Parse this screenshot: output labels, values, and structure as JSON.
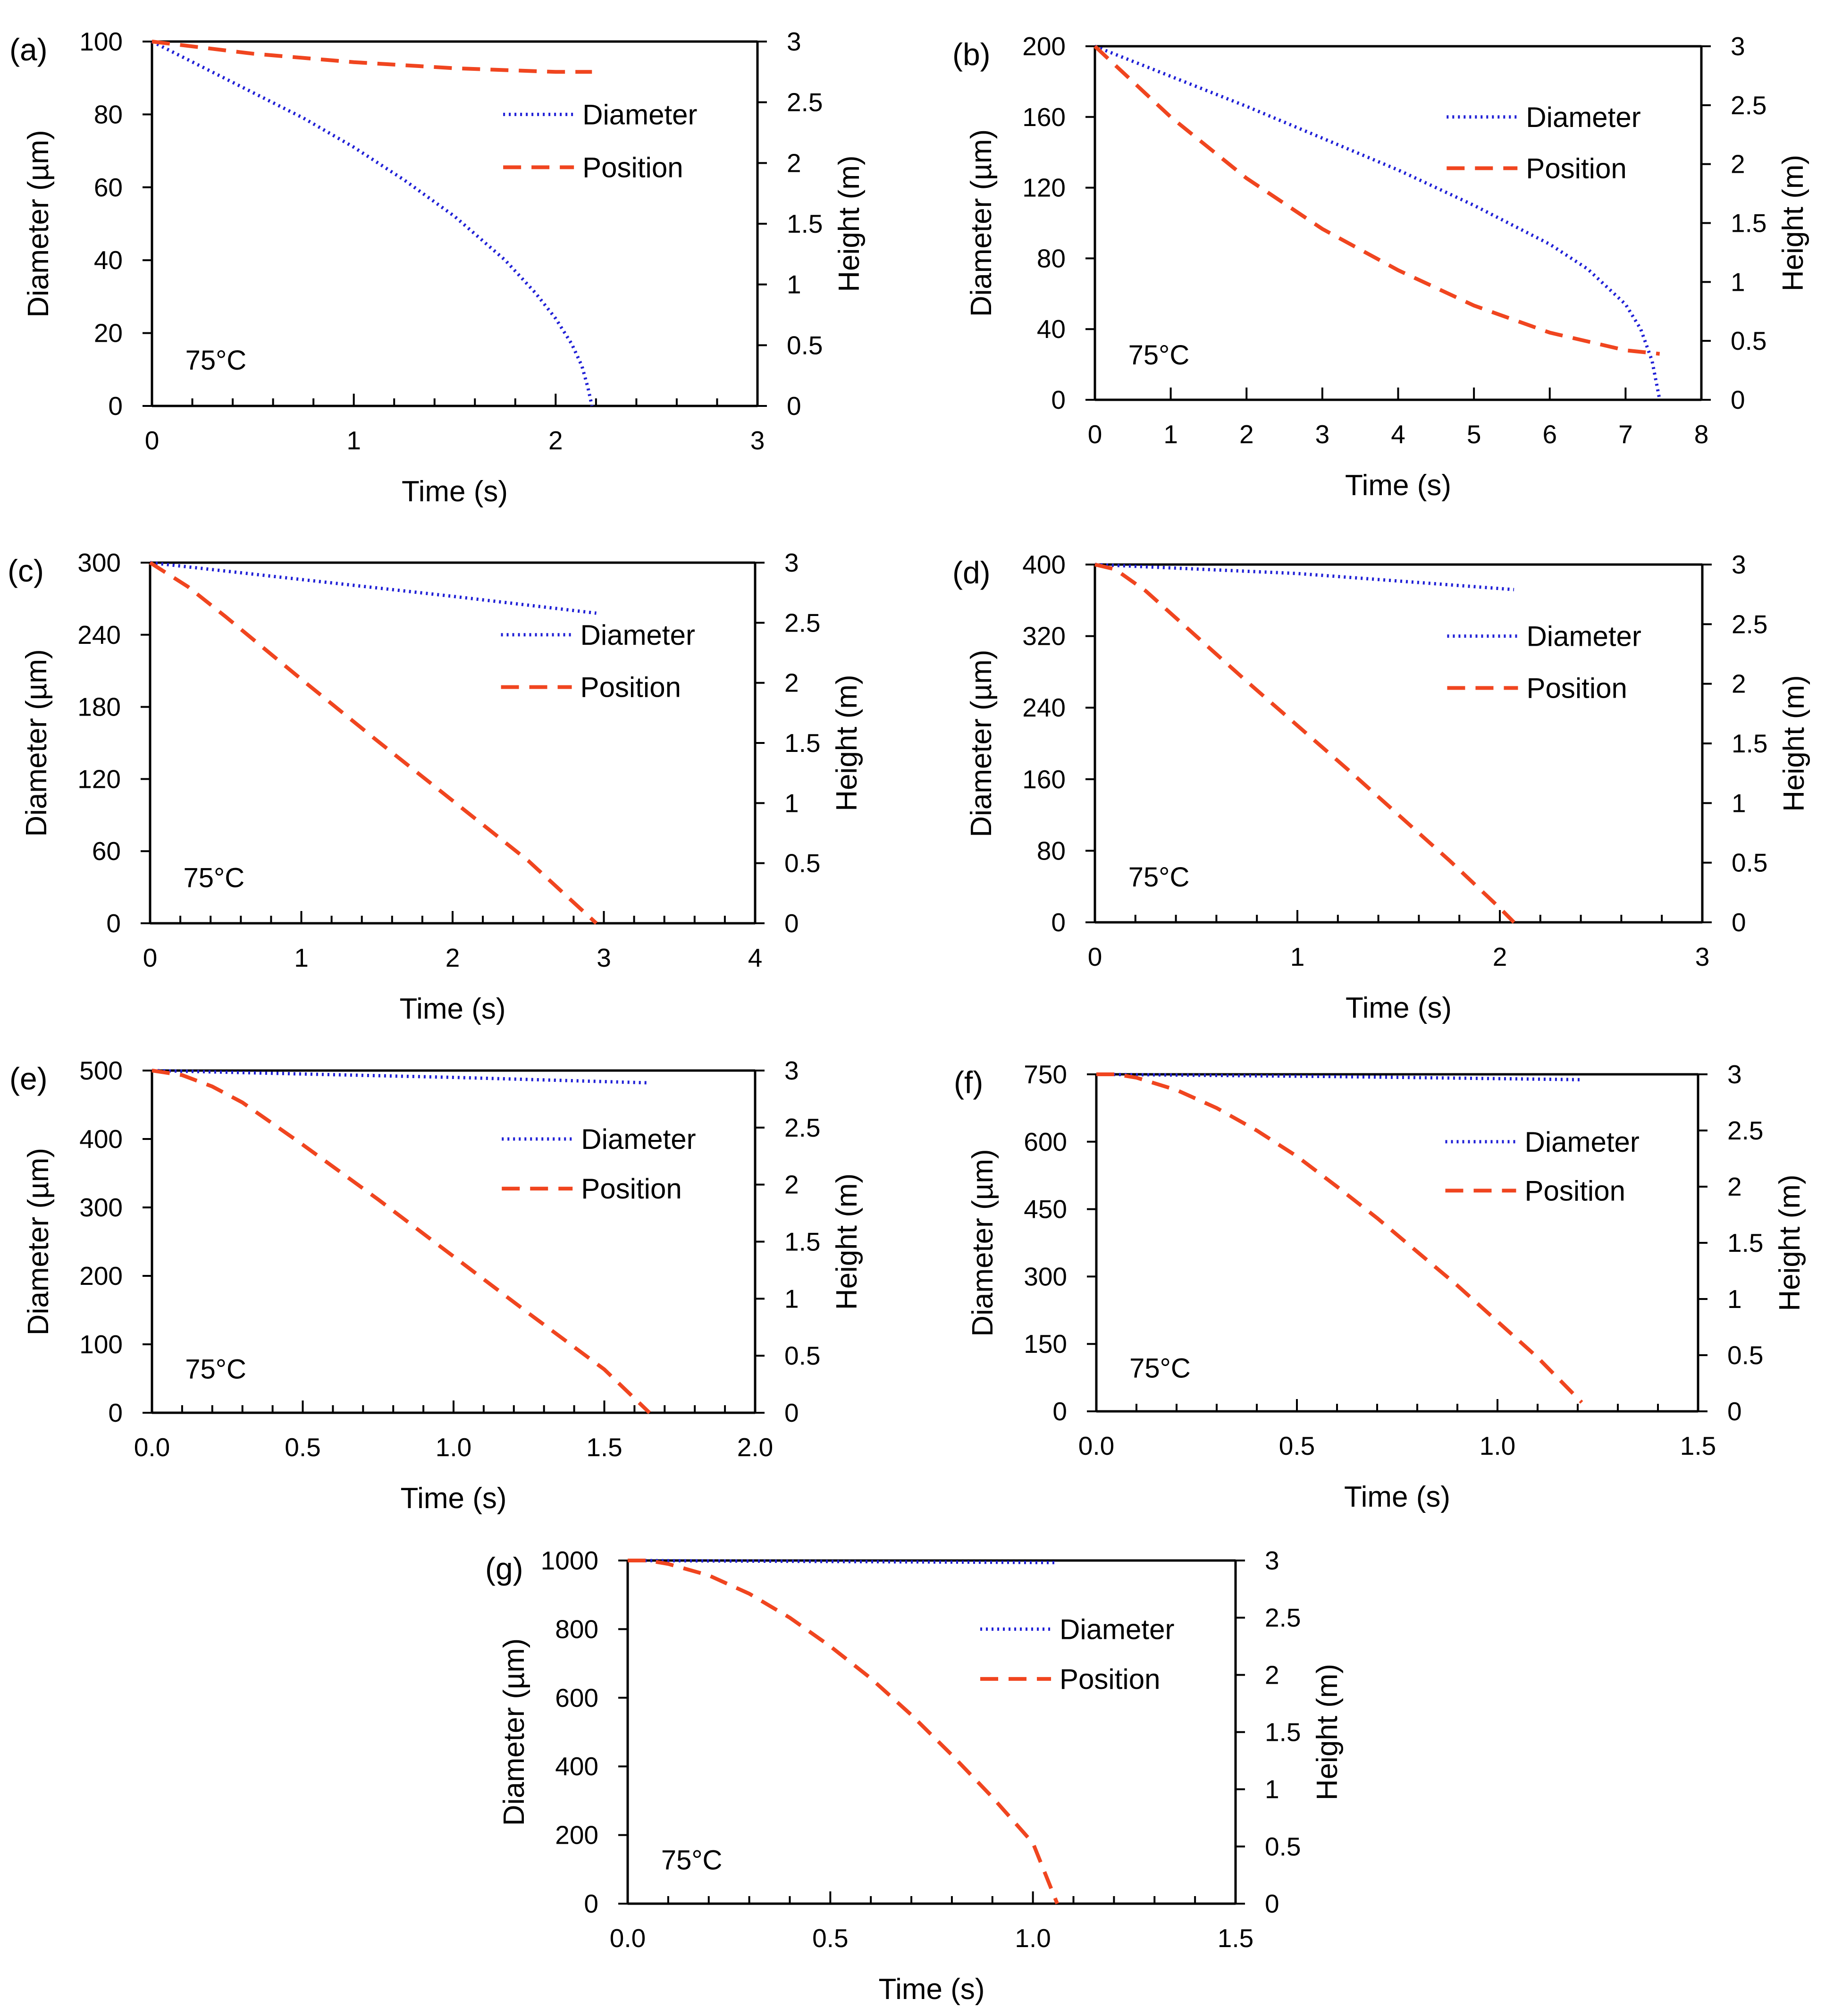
{
  "chart_data": [
    {
      "type": "line",
      "panel_label": "(a)",
      "xlabel": "Time (s)",
      "ylabel": "Diameter (µm)",
      "y2label": "Height (m)",
      "annotation": "75°C",
      "xlim": [
        0,
        3
      ],
      "ylim": [
        0,
        100
      ],
      "y2lim": [
        0,
        3
      ],
      "x_ticks": [
        "0",
        "1",
        "2",
        "3"
      ],
      "y_ticks": [
        "0",
        "20",
        "40",
        "60",
        "80",
        "100"
      ],
      "y2_ticks": [
        "0",
        "0.5",
        "1",
        "1.5",
        "2",
        "2.5",
        "3"
      ],
      "legend": {
        "position": "upper-right",
        "entries": [
          "Diameter",
          "Position"
        ]
      },
      "series": [
        {
          "name": "Diameter",
          "axis": "left",
          "style": "dotted",
          "color": "#1f1fd6",
          "x": [
            0,
            0.25,
            0.5,
            0.75,
            1.0,
            1.25,
            1.5,
            1.75,
            1.9,
            2.0,
            2.08,
            2.13,
            2.16,
            2.18
          ],
          "y": [
            100,
            93,
            86,
            79,
            71,
            62,
            52,
            40,
            31,
            24,
            17,
            11,
            5,
            0
          ]
        },
        {
          "name": "Position",
          "axis": "right",
          "style": "dashed",
          "color": "#f0451f",
          "x": [
            0,
            0.5,
            1.0,
            1.5,
            2.0,
            2.18
          ],
          "y": [
            3.0,
            2.9,
            2.83,
            2.78,
            2.75,
            2.75
          ]
        }
      ]
    },
    {
      "type": "line",
      "panel_label": "(b)",
      "xlabel": "Time (s)",
      "ylabel": "Diameter (µm)",
      "y2label": "Height (m)",
      "annotation": "75°C",
      "xlim": [
        0,
        8
      ],
      "ylim": [
        0,
        200
      ],
      "y2lim": [
        0,
        3
      ],
      "x_ticks": [
        "0",
        "1",
        "2",
        "3",
        "4",
        "5",
        "6",
        "7",
        "8"
      ],
      "y_ticks": [
        "0",
        "40",
        "80",
        "120",
        "160",
        "200"
      ],
      "y2_ticks": [
        "0",
        "0.5",
        "1",
        "1.5",
        "2",
        "2.5",
        "3"
      ],
      "legend": {
        "position": "upper-right",
        "entries": [
          "Diameter",
          "Position"
        ]
      },
      "series": [
        {
          "name": "Diameter",
          "axis": "left",
          "style": "dotted",
          "color": "#1f1fd6",
          "x": [
            0,
            1,
            2,
            3,
            4,
            5,
            6,
            6.5,
            7.0,
            7.2,
            7.35,
            7.45
          ],
          "y": [
            200,
            183,
            166,
            148,
            130,
            110,
            88,
            74,
            54,
            40,
            22,
            0
          ]
        },
        {
          "name": "Position",
          "axis": "right",
          "style": "dashed",
          "color": "#f0451f",
          "x": [
            0,
            1,
            2,
            3,
            4,
            5,
            6,
            7,
            7.45
          ],
          "y": [
            3.0,
            2.4,
            1.88,
            1.45,
            1.1,
            0.8,
            0.57,
            0.42,
            0.39
          ]
        }
      ]
    },
    {
      "type": "line",
      "panel_label": "(c)",
      "xlabel": "Time (s)",
      "ylabel": "Diameter (µm)",
      "y2label": "Height (m)",
      "annotation": "75°C",
      "xlim": [
        0,
        4
      ],
      "ylim": [
        0,
        300
      ],
      "y2lim": [
        0,
        3
      ],
      "x_ticks": [
        "0",
        "1",
        "2",
        "3",
        "4"
      ],
      "y_ticks": [
        "0",
        "60",
        "120",
        "180",
        "240",
        "300"
      ],
      "y2_ticks": [
        "0",
        "0.5",
        "1",
        "1.5",
        "2",
        "2.5",
        "3"
      ],
      "legend": {
        "position": "upper-right",
        "entries": [
          "Diameter",
          "Position"
        ]
      },
      "series": [
        {
          "name": "Diameter",
          "axis": "left",
          "style": "dotted",
          "color": "#1f1fd6",
          "x": [
            0,
            1,
            2,
            2.95
          ],
          "y": [
            300,
            286,
            272,
            258
          ]
        },
        {
          "name": "Position",
          "axis": "right",
          "style": "dashed",
          "color": "#f0451f",
          "x": [
            0,
            0.25,
            0.5,
            1.0,
            1.5,
            2.0,
            2.5,
            2.95
          ],
          "y": [
            3.0,
            2.8,
            2.55,
            2.03,
            1.52,
            1.02,
            0.52,
            0.0
          ]
        }
      ]
    },
    {
      "type": "line",
      "panel_label": "(d)",
      "xlabel": "Time (s)",
      "ylabel": "Diameter (µm)",
      "y2label": "Height (m)",
      "annotation": "75°C",
      "xlim": [
        0,
        3
      ],
      "ylim": [
        0,
        400
      ],
      "y2lim": [
        0,
        3
      ],
      "x_ticks": [
        "0",
        "1",
        "2",
        "3"
      ],
      "y_ticks": [
        "0",
        "80",
        "160",
        "240",
        "320",
        "400"
      ],
      "y2_ticks": [
        "0",
        "0.5",
        "1",
        "1.5",
        "2",
        "2.5",
        "3"
      ],
      "legend": {
        "position": "upper-right",
        "entries": [
          "Diameter",
          "Position"
        ]
      },
      "series": [
        {
          "name": "Diameter",
          "axis": "left",
          "style": "dotted",
          "color": "#1f1fd6",
          "x": [
            0,
            1,
            2.07
          ],
          "y": [
            400,
            390,
            372
          ]
        },
        {
          "name": "Position",
          "axis": "right",
          "style": "dashed",
          "color": "#f0451f",
          "x": [
            0,
            0.1,
            0.25,
            0.5,
            0.75,
            1.0,
            1.25,
            1.5,
            1.75,
            2.0,
            2.07
          ],
          "y": [
            3.0,
            2.96,
            2.78,
            2.4,
            2.02,
            1.65,
            1.28,
            0.9,
            0.52,
            0.12,
            0.0
          ]
        }
      ]
    },
    {
      "type": "line",
      "panel_label": "(e)",
      "xlabel": "Time (s)",
      "ylabel": "Diameter (µm)",
      "y2label": "Height (m)",
      "annotation": "75°C",
      "xlim": [
        0,
        2.0
      ],
      "ylim": [
        0,
        500
      ],
      "y2lim": [
        0,
        3
      ],
      "x_ticks": [
        "0.0",
        "0.5",
        "1.0",
        "1.5",
        "2.0"
      ],
      "y_ticks": [
        "0",
        "100",
        "200",
        "300",
        "400",
        "500"
      ],
      "y2_ticks": [
        "0",
        "0.5",
        "1",
        "1.5",
        "2",
        "2.5",
        "3"
      ],
      "legend": {
        "position": "upper-right",
        "entries": [
          "Diameter",
          "Position"
        ]
      },
      "series": [
        {
          "name": "Diameter",
          "axis": "left",
          "style": "dotted",
          "color": "#1f1fd6",
          "x": [
            0,
            0.5,
            1.0,
            1.65
          ],
          "y": [
            500,
            495,
            490,
            482
          ]
        },
        {
          "name": "Position",
          "axis": "right",
          "style": "dashed",
          "color": "#f0451f",
          "x": [
            0,
            0.1,
            0.2,
            0.3,
            0.5,
            0.75,
            1.0,
            1.25,
            1.5,
            1.65
          ],
          "y": [
            3.0,
            2.96,
            2.86,
            2.72,
            2.35,
            1.87,
            1.37,
            0.87,
            0.38,
            0.0
          ]
        }
      ]
    },
    {
      "type": "line",
      "panel_label": "(f)",
      "xlabel": "Time (s)",
      "ylabel": "Diameter (µm)",
      "y2label": "Height (m)",
      "annotation": "75°C",
      "xlim": [
        0,
        1.5
      ],
      "ylim": [
        0,
        750
      ],
      "y2lim": [
        0,
        3
      ],
      "x_ticks": [
        "0.0",
        "0.5",
        "1.0",
        "1.5"
      ],
      "y_ticks": [
        "0",
        "150",
        "300",
        "450",
        "600",
        "750"
      ],
      "y2_ticks": [
        "0",
        "0.5",
        "1",
        "1.5",
        "2",
        "2.5",
        "3"
      ],
      "legend": {
        "position": "upper-right",
        "entries": [
          "Diameter",
          "Position"
        ]
      },
      "series": [
        {
          "name": "Diameter",
          "axis": "left",
          "style": "dotted",
          "color": "#1f1fd6",
          "x": [
            0,
            0.6,
            1.21
          ],
          "y": [
            750,
            745,
            738
          ]
        },
        {
          "name": "Position",
          "axis": "right",
          "style": "dashed",
          "color": "#f0451f",
          "x": [
            0,
            0.05,
            0.1,
            0.2,
            0.3,
            0.4,
            0.5,
            0.6,
            0.7,
            0.8,
            0.9,
            1.0,
            1.1,
            1.21
          ],
          "y": [
            3.0,
            3.0,
            2.97,
            2.86,
            2.7,
            2.5,
            2.27,
            2.0,
            1.72,
            1.42,
            1.12,
            0.8,
            0.48,
            0.08
          ]
        }
      ]
    },
    {
      "type": "line",
      "panel_label": "(g)",
      "xlabel": "Time (s)",
      "ylabel": "Diameter (µm)",
      "y2label": "Height (m)",
      "annotation": "75°C",
      "xlim": [
        0,
        1.5
      ],
      "ylim": [
        0,
        1000
      ],
      "y2lim": [
        0,
        3
      ],
      "x_ticks": [
        "0.0",
        "0.5",
        "1.0",
        "1.5"
      ],
      "y_ticks": [
        "0",
        "200",
        "400",
        "600",
        "800",
        "1000"
      ],
      "y2_ticks": [
        "0",
        "0.5",
        "1",
        "1.5",
        "2",
        "2.5",
        "3"
      ],
      "legend": {
        "position": "upper-right",
        "entries": [
          "Diameter",
          "Position"
        ]
      },
      "series": [
        {
          "name": "Diameter",
          "axis": "left",
          "style": "dotted",
          "color": "#1f1fd6",
          "x": [
            0,
            0.5,
            1.06
          ],
          "y": [
            1000,
            997,
            994
          ]
        },
        {
          "name": "Position",
          "axis": "right",
          "style": "dashed",
          "color": "#f0451f",
          "x": [
            0,
            0.05,
            0.1,
            0.2,
            0.3,
            0.4,
            0.5,
            0.6,
            0.7,
            0.8,
            0.9,
            1.0,
            1.06
          ],
          "y": [
            3.0,
            3.0,
            2.97,
            2.87,
            2.71,
            2.5,
            2.25,
            1.97,
            1.65,
            1.3,
            0.93,
            0.53,
            0.0
          ]
        }
      ]
    }
  ]
}
